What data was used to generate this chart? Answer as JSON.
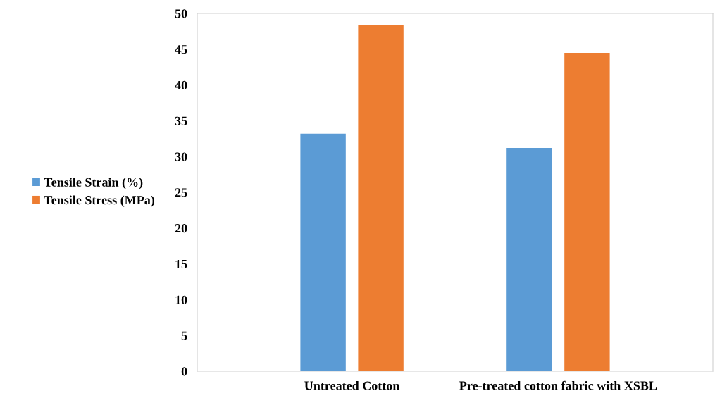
{
  "chart_data": {
    "type": "bar",
    "categories": [
      "Untreated Cotton",
      "Pre-treated cotton fabric with XSBL"
    ],
    "series": [
      {
        "name": "Tensile Strain (%)",
        "color": "#5b9bd5",
        "values": [
          33.2,
          31.2
        ]
      },
      {
        "name": "Tensile Stress (MPa)",
        "color": "#ed7d31",
        "values": [
          48.4,
          44.5
        ]
      }
    ],
    "ylim": [
      0,
      50
    ],
    "yticks": [
      0,
      5,
      10,
      15,
      20,
      25,
      30,
      35,
      40,
      45,
      50
    ],
    "grid": false,
    "legend": "left"
  }
}
